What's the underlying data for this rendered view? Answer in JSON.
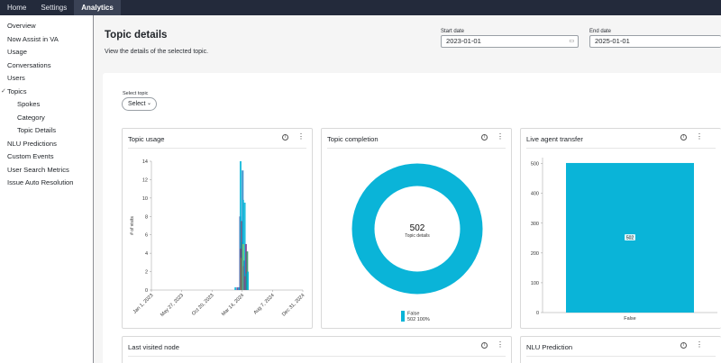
{
  "topnav": {
    "tabs": [
      {
        "label": "Home"
      },
      {
        "label": "Settings"
      },
      {
        "label": "Analytics"
      }
    ]
  },
  "sidebar": {
    "items": [
      {
        "label": "Overview"
      },
      {
        "label": "Now Assist in VA"
      },
      {
        "label": "Usage"
      },
      {
        "label": "Conversations"
      },
      {
        "label": "Users"
      },
      {
        "label": "Topics"
      },
      {
        "label": "Spokes"
      },
      {
        "label": "Category"
      },
      {
        "label": "Topic Details"
      },
      {
        "label": "NLU Predictions"
      },
      {
        "label": "Custom Events"
      },
      {
        "label": "User Search Metrics"
      },
      {
        "label": "Issue Auto Resolution"
      }
    ]
  },
  "header": {
    "title": "Topic details",
    "subtitle": "View the details of the selected topic.",
    "start_date": {
      "label": "Start date",
      "value": "2023-01-01"
    },
    "end_date": {
      "label": "End date",
      "value": "2025-01-01"
    }
  },
  "filter": {
    "label": "Select topic",
    "value": "Select"
  },
  "icons": {
    "info": "info-icon",
    "more": "more-vertical-icon",
    "calendar": "calendar-icon",
    "chevron": "chevron-down-icon"
  },
  "cards": {
    "topic_usage": {
      "title": "Topic usage"
    },
    "topic_completion": {
      "title": "Topic completion"
    },
    "live_agent_transfer": {
      "title": "Live agent transfer"
    },
    "last_visited_node": {
      "title": "Last visited node"
    },
    "nlu_prediction": {
      "title": "NLU Prediction"
    }
  },
  "chart_data": [
    {
      "type": "bar",
      "title": "Topic usage",
      "ylabel": "# of visits",
      "ylim": [
        0,
        14
      ],
      "yticks": [
        0,
        2,
        4,
        6,
        8,
        10,
        12,
        14
      ],
      "xticks": [
        "Jan 1, 2023",
        "May 27, 2023",
        "Oct 20, 2023",
        "Mar 14, 2024",
        "Aug 7, 2024",
        "Dec 31, 2024"
      ],
      "xrange": [
        "2023-01-01",
        "2024-12-31"
      ],
      "bars": [
        {
          "date": "2024-02-10",
          "value": 0.3,
          "color": "#00b4d8"
        },
        {
          "date": "2024-02-20",
          "value": 0.3,
          "color": "#7a3b8f"
        },
        {
          "date": "2024-02-28",
          "value": 0.3,
          "color": "#00b4d8"
        },
        {
          "date": "2024-03-04",
          "value": 8,
          "color": "#3b3f9e"
        },
        {
          "date": "2024-03-06",
          "value": 14,
          "color": "#00b4d8"
        },
        {
          "date": "2024-03-08",
          "value": 4.5,
          "color": "#8b2b6b"
        },
        {
          "date": "2024-03-10",
          "value": 3.5,
          "color": "#e2a400"
        },
        {
          "date": "2024-03-12",
          "value": 7.5,
          "color": "#c0324a"
        },
        {
          "date": "2024-03-14",
          "value": 5.2,
          "color": "#2d8f5a"
        },
        {
          "date": "2024-03-16",
          "value": 13,
          "color": "#1c7ec2"
        },
        {
          "date": "2024-03-18",
          "value": 9.8,
          "color": "#00b4d8"
        },
        {
          "date": "2024-03-20",
          "value": 5,
          "color": "#a6d854"
        },
        {
          "date": "2024-03-22",
          "value": 2.6,
          "color": "#e35d2c"
        },
        {
          "date": "2024-03-24",
          "value": 3.2,
          "color": "#3b3f9e"
        },
        {
          "date": "2024-03-26",
          "value": 9.5,
          "color": "#00b4d8"
        },
        {
          "date": "2024-03-29",
          "value": 1.5,
          "color": "#c0324a"
        },
        {
          "date": "2024-04-01",
          "value": 5,
          "color": "#7a3b8f"
        },
        {
          "date": "2024-04-04",
          "value": 1.8,
          "color": "#00b4d8"
        },
        {
          "date": "2024-04-07",
          "value": 4.2,
          "color": "#2d8f5a"
        },
        {
          "date": "2024-04-10",
          "value": 2,
          "color": "#00b4d8"
        }
      ]
    },
    {
      "type": "pie",
      "title": "Topic completion",
      "center_value": "502",
      "center_label": "Topic details",
      "slices": [
        {
          "label": "False",
          "value": 502,
          "percent": "100%",
          "color": "#0ab4d8"
        }
      ],
      "legend_placement": "bottom"
    },
    {
      "type": "bar",
      "title": "Live agent transfer",
      "categories": [
        "False"
      ],
      "values": [
        502
      ],
      "data_labels": [
        "502"
      ],
      "ylim": [
        0,
        520
      ],
      "yticks": [
        0,
        100,
        200,
        300,
        400,
        500
      ],
      "color": "#0ab4d8"
    }
  ]
}
